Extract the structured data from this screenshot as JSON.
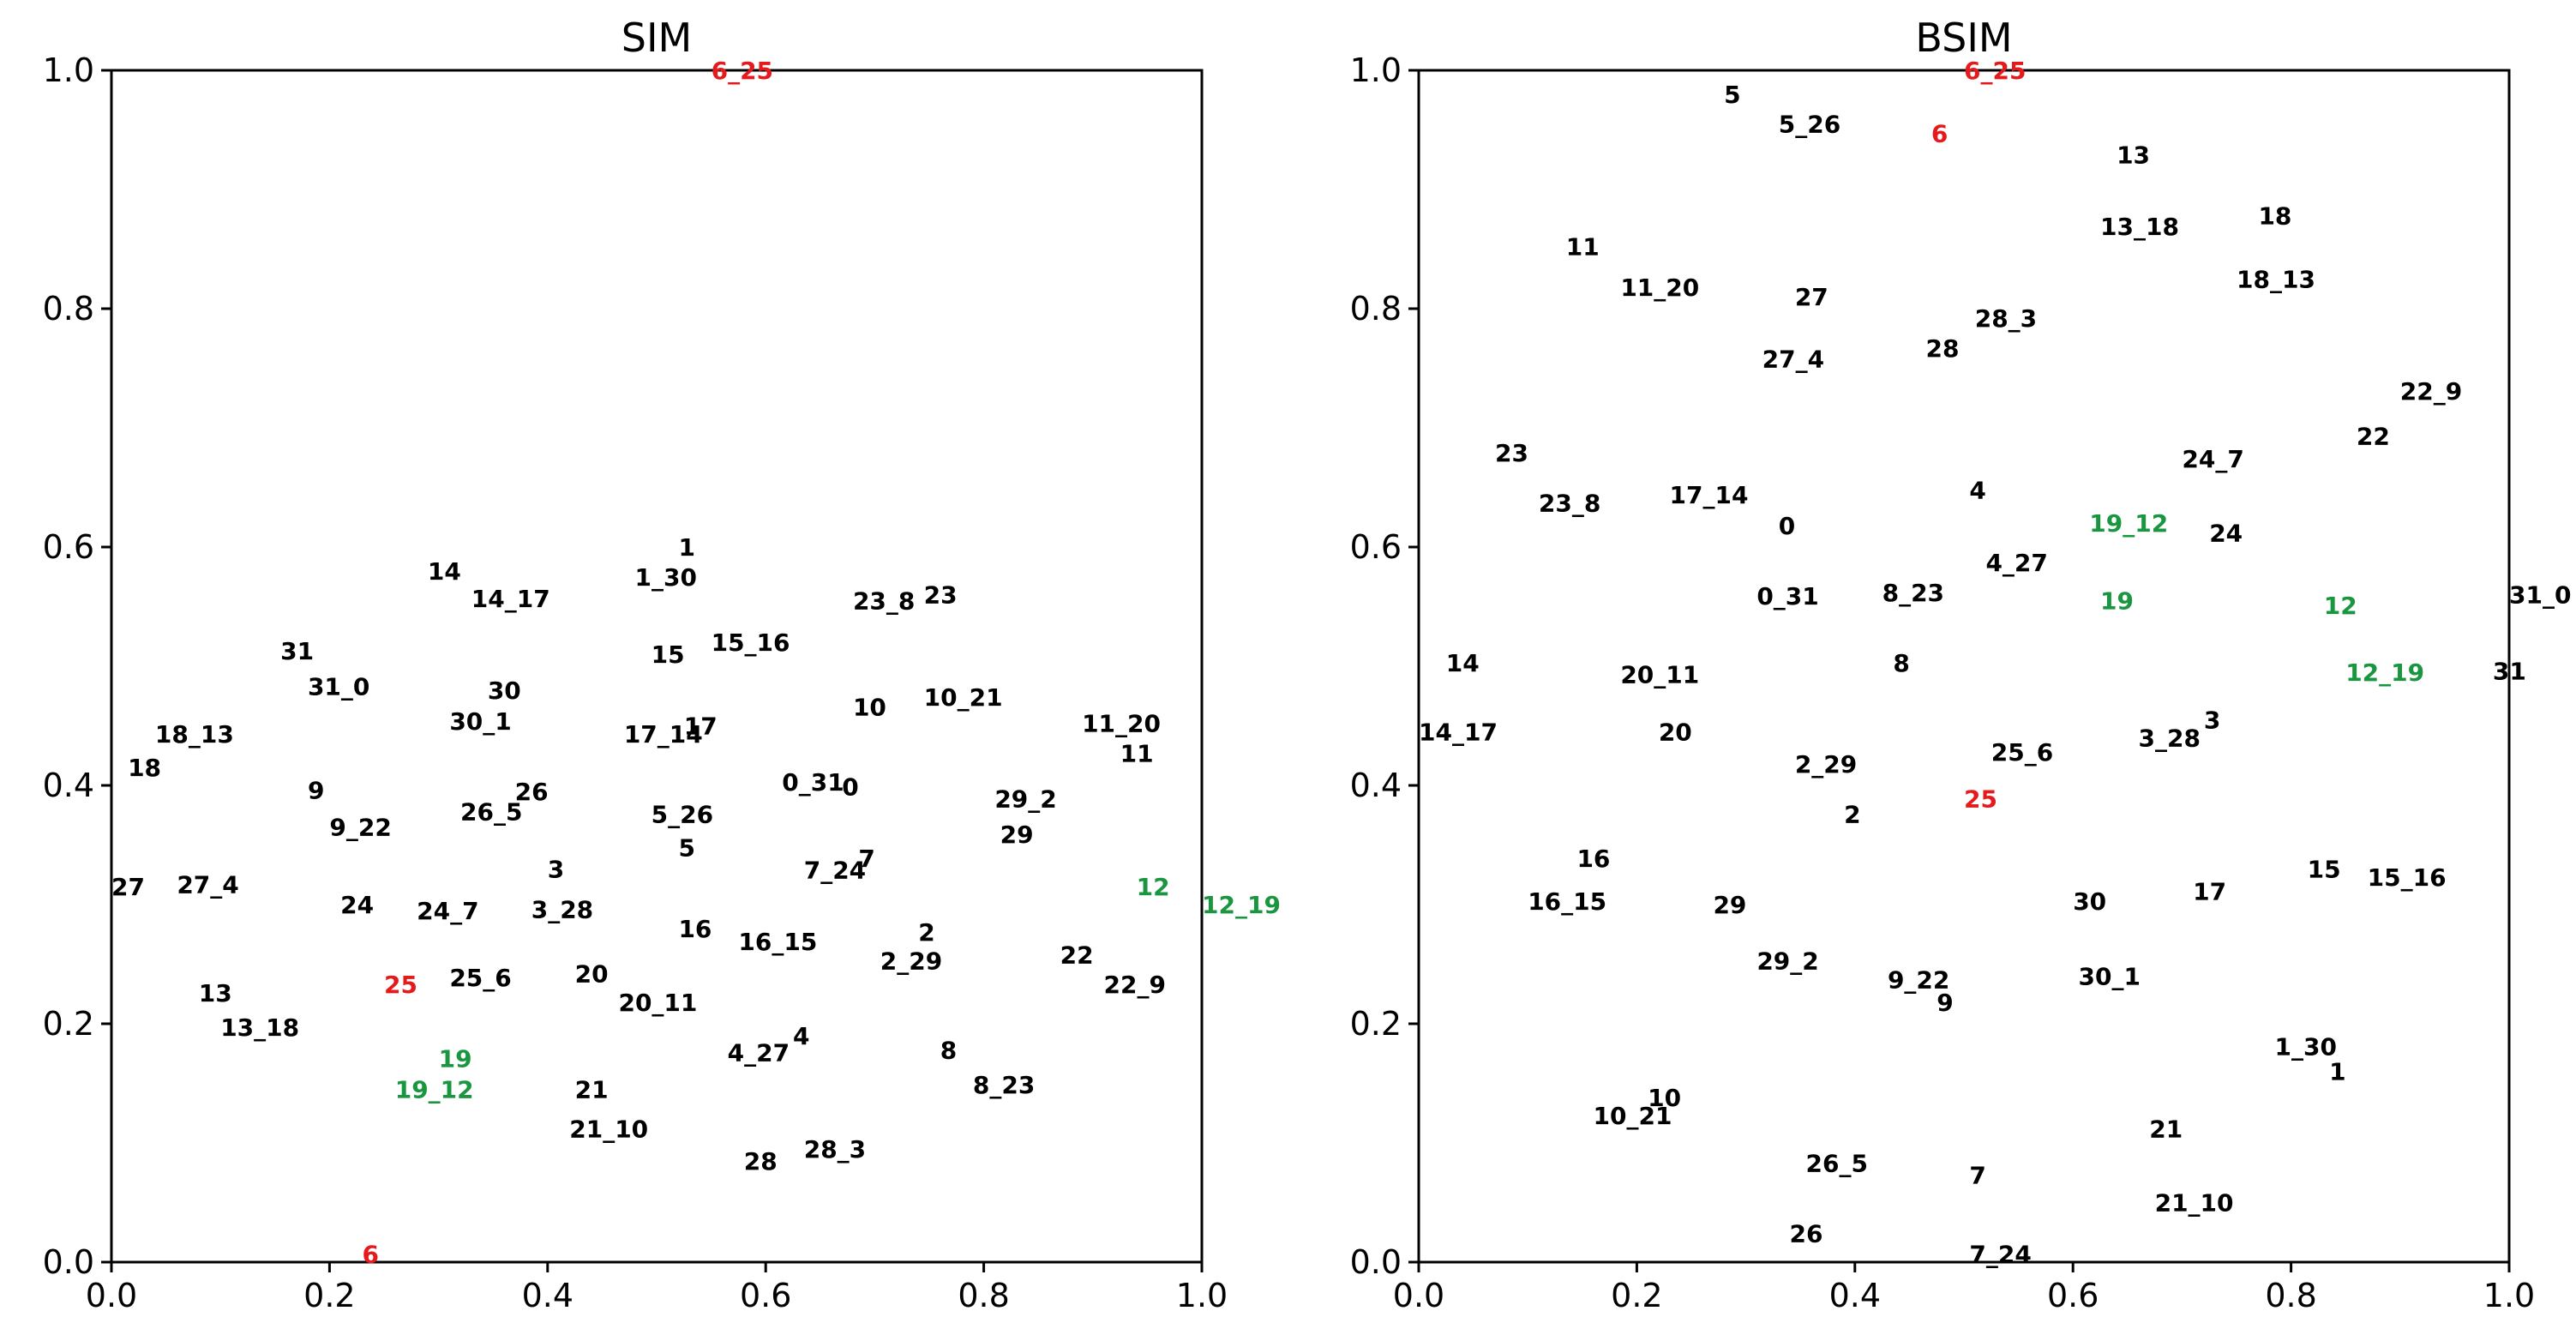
{
  "chart_data": [
    {
      "type": "scatter",
      "title": "SIM",
      "xlim": [
        0,
        1
      ],
      "ylim": [
        0,
        1
      ],
      "xticks": [
        "0.0",
        "0.2",
        "0.4",
        "0.6",
        "0.8",
        "1.0"
      ],
      "yticks": [
        "0.0",
        "0.2",
        "0.4",
        "0.6",
        "0.8",
        "1.0"
      ],
      "grid": false,
      "colors": {
        "default": "#000000",
        "red": "#e41a1c",
        "green": "#1a9641"
      },
      "points": [
        {
          "label": "6_25",
          "x": 0.55,
          "y": 1.0,
          "color": "red"
        },
        {
          "label": "1",
          "x": 0.52,
          "y": 0.6,
          "color": "default"
        },
        {
          "label": "1_30",
          "x": 0.48,
          "y": 0.575,
          "color": "default"
        },
        {
          "label": "14",
          "x": 0.29,
          "y": 0.58,
          "color": "default"
        },
        {
          "label": "14_17",
          "x": 0.33,
          "y": 0.557,
          "color": "default"
        },
        {
          "label": "23_8",
          "x": 0.68,
          "y": 0.555,
          "color": "default"
        },
        {
          "label": "23",
          "x": 0.745,
          "y": 0.56,
          "color": "default"
        },
        {
          "label": "31",
          "x": 0.155,
          "y": 0.513,
          "color": "default"
        },
        {
          "label": "15",
          "x": 0.495,
          "y": 0.51,
          "color": "default"
        },
        {
          "label": "15_16",
          "x": 0.55,
          "y": 0.52,
          "color": "default"
        },
        {
          "label": "31_0",
          "x": 0.18,
          "y": 0.483,
          "color": "default"
        },
        {
          "label": "30",
          "x": 0.345,
          "y": 0.48,
          "color": "default"
        },
        {
          "label": "10",
          "x": 0.68,
          "y": 0.466,
          "color": "default"
        },
        {
          "label": "10_21",
          "x": 0.745,
          "y": 0.474,
          "color": "default"
        },
        {
          "label": "30_1",
          "x": 0.31,
          "y": 0.454,
          "color": "default"
        },
        {
          "label": "17_14",
          "x": 0.47,
          "y": 0.443,
          "color": "default"
        },
        {
          "label": "17",
          "x": 0.525,
          "y": 0.45,
          "color": "default"
        },
        {
          "label": "11_20",
          "x": 0.89,
          "y": 0.452,
          "color": "default"
        },
        {
          "label": "18_13",
          "x": 0.04,
          "y": 0.443,
          "color": "default"
        },
        {
          "label": "11",
          "x": 0.925,
          "y": 0.427,
          "color": "default"
        },
        {
          "label": "18",
          "x": 0.015,
          "y": 0.415,
          "color": "default"
        },
        {
          "label": "0_31",
          "x": 0.615,
          "y": 0.403,
          "color": "default"
        },
        {
          "label": "0",
          "x": 0.67,
          "y": 0.399,
          "color": "default"
        },
        {
          "label": "9",
          "x": 0.18,
          "y": 0.396,
          "color": "default"
        },
        {
          "label": "26",
          "x": 0.37,
          "y": 0.395,
          "color": "default"
        },
        {
          "label": "29_2",
          "x": 0.81,
          "y": 0.389,
          "color": "default"
        },
        {
          "label": "26_5",
          "x": 0.32,
          "y": 0.378,
          "color": "default"
        },
        {
          "label": "5_26",
          "x": 0.495,
          "y": 0.376,
          "color": "default"
        },
        {
          "label": "9_22",
          "x": 0.2,
          "y": 0.365,
          "color": "default"
        },
        {
          "label": "29",
          "x": 0.815,
          "y": 0.359,
          "color": "default"
        },
        {
          "label": "5",
          "x": 0.52,
          "y": 0.348,
          "color": "default"
        },
        {
          "label": "7",
          "x": 0.685,
          "y": 0.339,
          "color": "default"
        },
        {
          "label": "3",
          "x": 0.4,
          "y": 0.33,
          "color": "default"
        },
        {
          "label": "7_24",
          "x": 0.635,
          "y": 0.329,
          "color": "default"
        },
        {
          "label": "27",
          "x": 0.0,
          "y": 0.315,
          "color": "default"
        },
        {
          "label": "27_4",
          "x": 0.06,
          "y": 0.317,
          "color": "default"
        },
        {
          "label": "12",
          "x": 0.94,
          "y": 0.315,
          "color": "green"
        },
        {
          "label": "12_19",
          "x": 1.0,
          "y": 0.3,
          "color": "green"
        },
        {
          "label": "24",
          "x": 0.21,
          "y": 0.3,
          "color": "default"
        },
        {
          "label": "24_7",
          "x": 0.28,
          "y": 0.295,
          "color": "default"
        },
        {
          "label": "3_28",
          "x": 0.385,
          "y": 0.296,
          "color": "default"
        },
        {
          "label": "16",
          "x": 0.52,
          "y": 0.28,
          "color": "default"
        },
        {
          "label": "2",
          "x": 0.74,
          "y": 0.277,
          "color": "default"
        },
        {
          "label": "16_15",
          "x": 0.575,
          "y": 0.269,
          "color": "default"
        },
        {
          "label": "22",
          "x": 0.87,
          "y": 0.258,
          "color": "default"
        },
        {
          "label": "2_29",
          "x": 0.705,
          "y": 0.253,
          "color": "default"
        },
        {
          "label": "25_6",
          "x": 0.31,
          "y": 0.239,
          "color": "default"
        },
        {
          "label": "20",
          "x": 0.425,
          "y": 0.242,
          "color": "default"
        },
        {
          "label": "25",
          "x": 0.25,
          "y": 0.233,
          "color": "red"
        },
        {
          "label": "22_9",
          "x": 0.91,
          "y": 0.233,
          "color": "default"
        },
        {
          "label": "13",
          "x": 0.08,
          "y": 0.226,
          "color": "default"
        },
        {
          "label": "20_11",
          "x": 0.465,
          "y": 0.218,
          "color": "default"
        },
        {
          "label": "13_18",
          "x": 0.1,
          "y": 0.197,
          "color": "default"
        },
        {
          "label": "4",
          "x": 0.625,
          "y": 0.19,
          "color": "default"
        },
        {
          "label": "4_27",
          "x": 0.565,
          "y": 0.176,
          "color": "default"
        },
        {
          "label": "8",
          "x": 0.76,
          "y": 0.178,
          "color": "default"
        },
        {
          "label": "19",
          "x": 0.3,
          "y": 0.171,
          "color": "green"
        },
        {
          "label": "8_23",
          "x": 0.79,
          "y": 0.149,
          "color": "default"
        },
        {
          "label": "19_12",
          "x": 0.26,
          "y": 0.145,
          "color": "green"
        },
        {
          "label": "21",
          "x": 0.425,
          "y": 0.145,
          "color": "default"
        },
        {
          "label": "21_10",
          "x": 0.42,
          "y": 0.112,
          "color": "default"
        },
        {
          "label": "28_3",
          "x": 0.635,
          "y": 0.095,
          "color": "default"
        },
        {
          "label": "28",
          "x": 0.58,
          "y": 0.085,
          "color": "default"
        },
        {
          "label": "6",
          "x": 0.23,
          "y": 0.007,
          "color": "red"
        }
      ]
    },
    {
      "type": "scatter",
      "title": "BSIM",
      "xlim": [
        0,
        1
      ],
      "ylim": [
        0,
        1
      ],
      "xticks": [
        "0.0",
        "0.2",
        "0.4",
        "0.6",
        "0.8",
        "1.0"
      ],
      "yticks": [
        "0.0",
        "0.2",
        "0.4",
        "0.6",
        "0.8",
        "1.0"
      ],
      "grid": false,
      "colors": {
        "default": "#000000",
        "red": "#e41a1c",
        "green": "#1a9641"
      },
      "points": [
        {
          "label": "6_25",
          "x": 0.5,
          "y": 1.0,
          "color": "red"
        },
        {
          "label": "5",
          "x": 0.28,
          "y": 0.98,
          "color": "default"
        },
        {
          "label": "5_26",
          "x": 0.33,
          "y": 0.955,
          "color": "default"
        },
        {
          "label": "6",
          "x": 0.47,
          "y": 0.947,
          "color": "red"
        },
        {
          "label": "13",
          "x": 0.64,
          "y": 0.929,
          "color": "default"
        },
        {
          "label": "18",
          "x": 0.77,
          "y": 0.878,
          "color": "default"
        },
        {
          "label": "13_18",
          "x": 0.625,
          "y": 0.869,
          "color": "default"
        },
        {
          "label": "11",
          "x": 0.135,
          "y": 0.852,
          "color": "default"
        },
        {
          "label": "18_13",
          "x": 0.75,
          "y": 0.825,
          "color": "default"
        },
        {
          "label": "11_20",
          "x": 0.185,
          "y": 0.818,
          "color": "default"
        },
        {
          "label": "27",
          "x": 0.345,
          "y": 0.81,
          "color": "default"
        },
        {
          "label": "28_3",
          "x": 0.51,
          "y": 0.792,
          "color": "default"
        },
        {
          "label": "28",
          "x": 0.465,
          "y": 0.767,
          "color": "default"
        },
        {
          "label": "27_4",
          "x": 0.315,
          "y": 0.758,
          "color": "default"
        },
        {
          "label": "22_9",
          "x": 0.9,
          "y": 0.731,
          "color": "default"
        },
        {
          "label": "22",
          "x": 0.86,
          "y": 0.693,
          "color": "default"
        },
        {
          "label": "23",
          "x": 0.07,
          "y": 0.679,
          "color": "default"
        },
        {
          "label": "24_7",
          "x": 0.7,
          "y": 0.674,
          "color": "default"
        },
        {
          "label": "4",
          "x": 0.505,
          "y": 0.648,
          "color": "default"
        },
        {
          "label": "17_14",
          "x": 0.23,
          "y": 0.644,
          "color": "default"
        },
        {
          "label": "23_8",
          "x": 0.11,
          "y": 0.637,
          "color": "default"
        },
        {
          "label": "19_12",
          "x": 0.615,
          "y": 0.62,
          "color": "green"
        },
        {
          "label": "0",
          "x": 0.33,
          "y": 0.618,
          "color": "default"
        },
        {
          "label": "24",
          "x": 0.725,
          "y": 0.612,
          "color": "default"
        },
        {
          "label": "4_27",
          "x": 0.52,
          "y": 0.587,
          "color": "default"
        },
        {
          "label": "8_23",
          "x": 0.425,
          "y": 0.562,
          "color": "default"
        },
        {
          "label": "0_31",
          "x": 0.31,
          "y": 0.559,
          "color": "default"
        },
        {
          "label": "31_0",
          "x": 1.0,
          "y": 0.56,
          "color": "default"
        },
        {
          "label": "19",
          "x": 0.625,
          "y": 0.555,
          "color": "green"
        },
        {
          "label": "12",
          "x": 0.83,
          "y": 0.551,
          "color": "green"
        },
        {
          "label": "8",
          "x": 0.435,
          "y": 0.503,
          "color": "default"
        },
        {
          "label": "14",
          "x": 0.025,
          "y": 0.503,
          "color": "default"
        },
        {
          "label": "31",
          "x": 0.985,
          "y": 0.496,
          "color": "default"
        },
        {
          "label": "12_19",
          "x": 0.85,
          "y": 0.495,
          "color": "green"
        },
        {
          "label": "20_11",
          "x": 0.185,
          "y": 0.493,
          "color": "default"
        },
        {
          "label": "14_17",
          "x": 0.0,
          "y": 0.445,
          "color": "default"
        },
        {
          "label": "20",
          "x": 0.22,
          "y": 0.445,
          "color": "default"
        },
        {
          "label": "3",
          "x": 0.72,
          "y": 0.455,
          "color": "default"
        },
        {
          "label": "3_28",
          "x": 0.66,
          "y": 0.44,
          "color": "default"
        },
        {
          "label": "25_6",
          "x": 0.525,
          "y": 0.428,
          "color": "default"
        },
        {
          "label": "2_29",
          "x": 0.345,
          "y": 0.418,
          "color": "default"
        },
        {
          "label": "25",
          "x": 0.5,
          "y": 0.389,
          "color": "red"
        },
        {
          "label": "2",
          "x": 0.39,
          "y": 0.376,
          "color": "default"
        },
        {
          "label": "16",
          "x": 0.145,
          "y": 0.339,
          "color": "default"
        },
        {
          "label": "15",
          "x": 0.815,
          "y": 0.33,
          "color": "default"
        },
        {
          "label": "15_16",
          "x": 0.87,
          "y": 0.323,
          "color": "default"
        },
        {
          "label": "17",
          "x": 0.71,
          "y": 0.311,
          "color": "default"
        },
        {
          "label": "16_15",
          "x": 0.1,
          "y": 0.303,
          "color": "default"
        },
        {
          "label": "30",
          "x": 0.6,
          "y": 0.303,
          "color": "default"
        },
        {
          "label": "29",
          "x": 0.27,
          "y": 0.3,
          "color": "default"
        },
        {
          "label": "29_2",
          "x": 0.31,
          "y": 0.253,
          "color": "default"
        },
        {
          "label": "30_1",
          "x": 0.605,
          "y": 0.24,
          "color": "default"
        },
        {
          "label": "9_22",
          "x": 0.43,
          "y": 0.237,
          "color": "default"
        },
        {
          "label": "9",
          "x": 0.475,
          "y": 0.218,
          "color": "default"
        },
        {
          "label": "1_30",
          "x": 0.785,
          "y": 0.181,
          "color": "default"
        },
        {
          "label": "1",
          "x": 0.835,
          "y": 0.16,
          "color": "default"
        },
        {
          "label": "10",
          "x": 0.21,
          "y": 0.138,
          "color": "default"
        },
        {
          "label": "10_21",
          "x": 0.16,
          "y": 0.123,
          "color": "default"
        },
        {
          "label": "21",
          "x": 0.67,
          "y": 0.112,
          "color": "default"
        },
        {
          "label": "26_5",
          "x": 0.355,
          "y": 0.083,
          "color": "default"
        },
        {
          "label": "7",
          "x": 0.505,
          "y": 0.073,
          "color": "default"
        },
        {
          "label": "21_10",
          "x": 0.675,
          "y": 0.05,
          "color": "default"
        },
        {
          "label": "26",
          "x": 0.34,
          "y": 0.024,
          "color": "default"
        },
        {
          "label": "7_24",
          "x": 0.505,
          "y": 0.007,
          "color": "default"
        }
      ]
    }
  ]
}
